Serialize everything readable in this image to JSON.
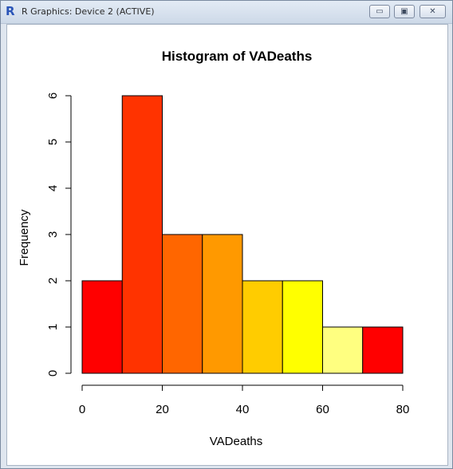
{
  "window": {
    "icon_glyph": "R",
    "title": "R Graphics: Device 2 (ACTIVE)",
    "minimize_glyph": "▭",
    "maximize_glyph": "▣",
    "close_glyph": "✕"
  },
  "chart_data": {
    "type": "bar",
    "title": "Histogram of VADeaths",
    "xlabel": "VADeaths",
    "ylabel": "Frequency",
    "bins": [
      [
        0,
        10
      ],
      [
        10,
        20
      ],
      [
        20,
        30
      ],
      [
        30,
        40
      ],
      [
        40,
        50
      ],
      [
        50,
        60
      ],
      [
        60,
        70
      ],
      [
        70,
        80
      ]
    ],
    "values": [
      2,
      6,
      3,
      3,
      2,
      2,
      1,
      1
    ],
    "colors": [
      "#FF0000",
      "#FF3300",
      "#FF6600",
      "#FF9900",
      "#FFCC00",
      "#FFFF00",
      "#FFFF80",
      "#FF0000"
    ],
    "xlim": [
      0,
      80
    ],
    "ylim": [
      0,
      6
    ],
    "x_ticks": [
      "0",
      "20",
      "40",
      "60",
      "80"
    ],
    "y_ticks": [
      "0",
      "1",
      "2",
      "3",
      "4",
      "5",
      "6"
    ],
    "grid": false,
    "legend": "none"
  }
}
